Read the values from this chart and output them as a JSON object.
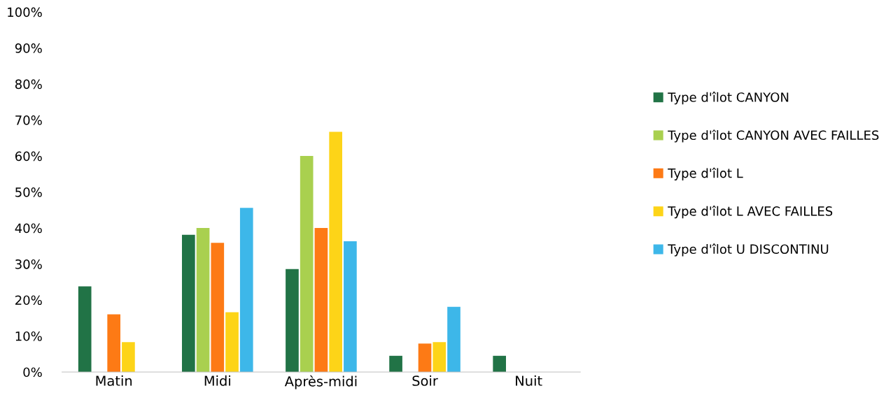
{
  "chart_data": {
    "type": "bar",
    "categories": [
      "Matin",
      "Midi",
      "Après-midi",
      "Soir",
      "Nuit"
    ],
    "series": [
      {
        "name": "Type d'îlot CANYON",
        "color": "#217346",
        "values": [
          23.8,
          38.1,
          28.6,
          4.5,
          4.5
        ]
      },
      {
        "name": "Type d'îlot CANYON AVEC FAILLES",
        "color": "#a9d04f",
        "values": [
          0,
          40,
          60,
          0,
          0
        ]
      },
      {
        "name": "Type d'îlot L",
        "color": "#fd7a15",
        "values": [
          16,
          35.9,
          40,
          7.9,
          0
        ]
      },
      {
        "name": "Type d'îlot L AVEC FAILLES",
        "color": "#fdd418",
        "values": [
          8.3,
          16.6,
          66.7,
          8.3,
          0
        ]
      },
      {
        "name": "Type d'îlot U DISCONTINU",
        "color": "#3db7e9",
        "values": [
          0,
          45.6,
          36.3,
          18.1,
          0
        ]
      }
    ],
    "ylim": [
      0,
      100
    ],
    "yticks": [
      {
        "value": 0,
        "label": "0%"
      },
      {
        "value": 10,
        "label": "10%"
      },
      {
        "value": 20,
        "label": "20%"
      },
      {
        "value": 30,
        "label": "30%"
      },
      {
        "value": 40,
        "label": "40%"
      },
      {
        "value": 50,
        "label": "50%"
      },
      {
        "value": 60,
        "label": "60%"
      },
      {
        "value": 70,
        "label": "70%"
      },
      {
        "value": 80,
        "label": "80%"
      },
      {
        "value": 90,
        "label": "90%"
      },
      {
        "value": 100,
        "label": "100%"
      }
    ],
    "grid": false,
    "legend": "right"
  }
}
